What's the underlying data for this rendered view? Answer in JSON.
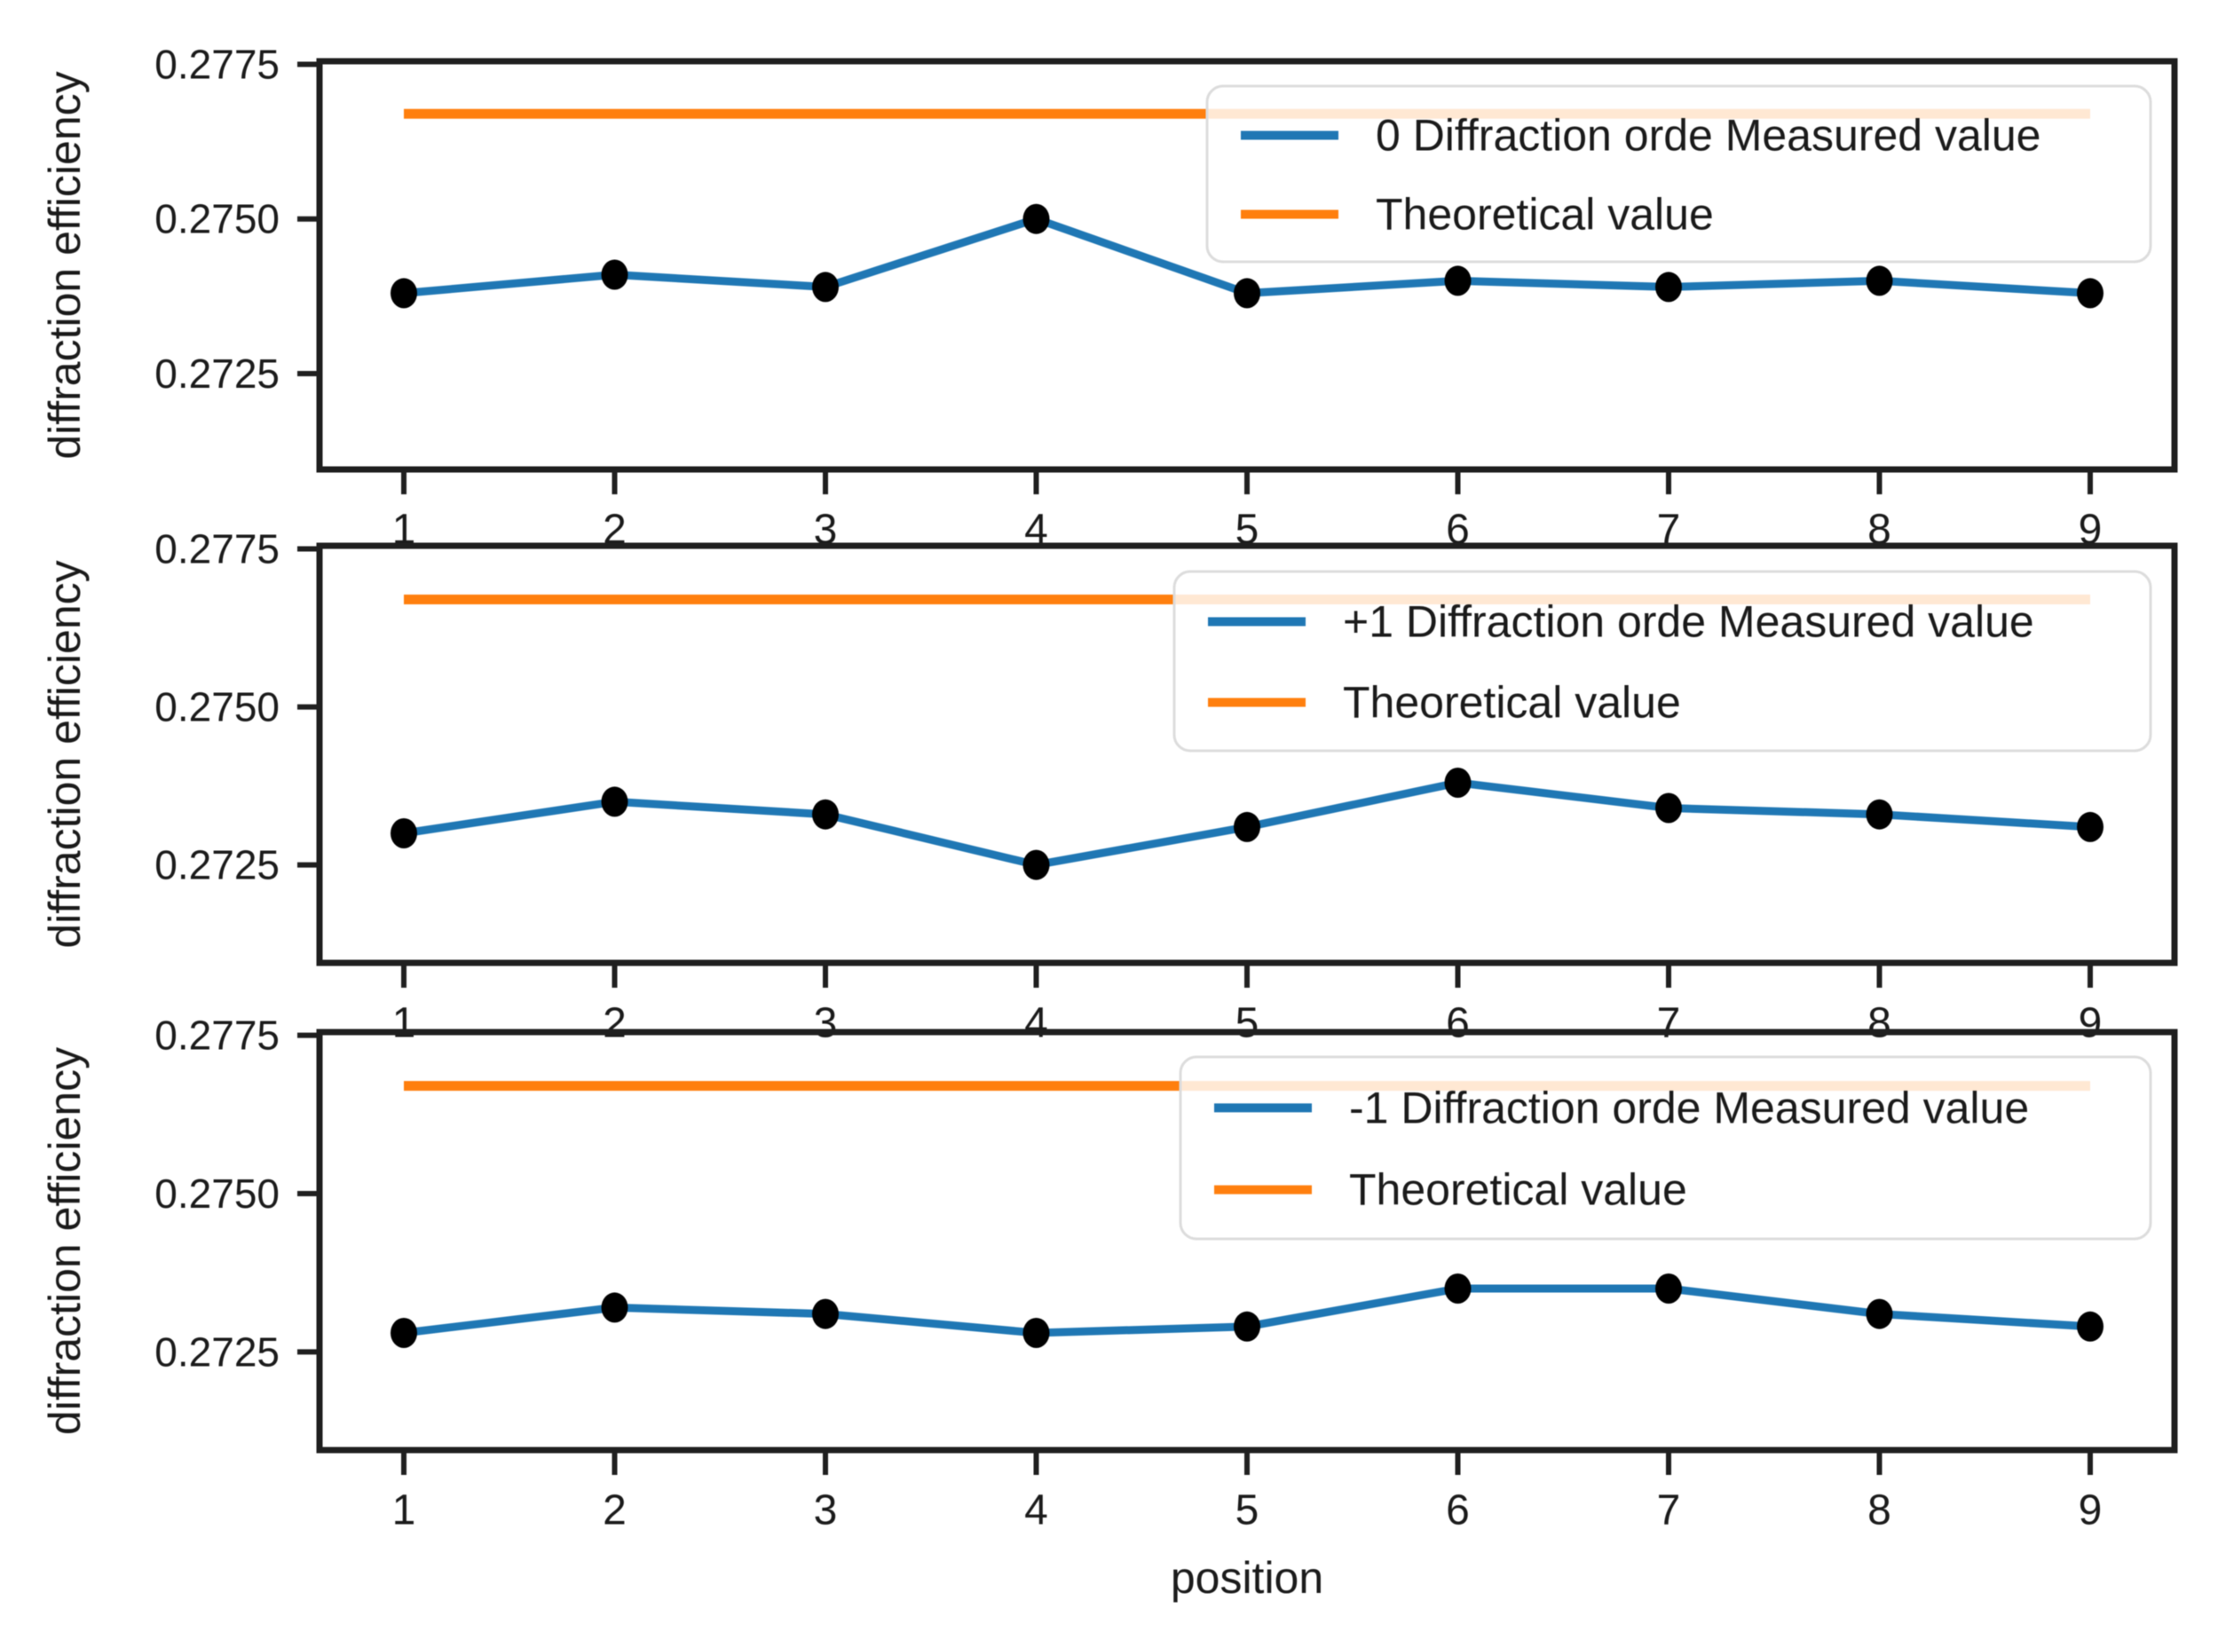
{
  "figure": {
    "xlabel": "position",
    "background": "#ffffff"
  },
  "palette": {
    "measured_line": "#1f77b4",
    "theoretical_line": "#ff7f0e",
    "marker": "#000000",
    "spine": "#1f1f1f",
    "text": "#1a1a1a",
    "legend_border": "#dcdcdc",
    "legend_fill": "rgba(255,255,255,0.82)"
  },
  "chart_data": [
    {
      "type": "line",
      "title": "",
      "ylabel": "diffraction efficiency",
      "x": [
        1,
        2,
        3,
        4,
        5,
        6,
        7,
        8,
        9
      ],
      "xtick_labels": [
        "1",
        "2",
        "3",
        "4",
        "5",
        "6",
        "7",
        "8",
        "9"
      ],
      "ytick_values": [
        0.2775,
        0.275,
        0.2725
      ],
      "ytick_labels": [
        "0.2775",
        "0.2750",
        "0.2725"
      ],
      "xlim": [
        0.6,
        9.4
      ],
      "ylim": [
        0.27095,
        0.27755
      ],
      "grid": false,
      "legend_position": "upper right",
      "series": [
        {
          "name": "0 Diffraction orde Measured value",
          "type": "line",
          "marker": "circle",
          "values": [
            0.2738,
            0.2741,
            0.2739,
            0.275,
            0.2738,
            0.274,
            0.2739,
            0.274,
            0.2738
          ]
        },
        {
          "name": "Theoretical value",
          "type": "hline",
          "value": 0.2767
        }
      ]
    },
    {
      "type": "line",
      "title": "",
      "ylabel": "diffraction efficiency",
      "x": [
        1,
        2,
        3,
        4,
        5,
        6,
        7,
        8,
        9
      ],
      "xtick_labels": [
        "1",
        "2",
        "3",
        "4",
        "5",
        "6",
        "7",
        "8",
        "9"
      ],
      "ytick_values": [
        0.2775,
        0.275,
        0.2725
      ],
      "ytick_labels": [
        "0.2775",
        "0.2750",
        "0.2725"
      ],
      "xlim": [
        0.6,
        9.4
      ],
      "ylim": [
        0.27095,
        0.27755
      ],
      "grid": false,
      "legend_position": "upper right",
      "series": [
        {
          "name": "+1 Diffraction orde Measured value",
          "type": "line",
          "marker": "circle",
          "values": [
            0.273,
            0.2735,
            0.2733,
            0.2725,
            0.2731,
            0.2738,
            0.2734,
            0.2733,
            0.2731
          ]
        },
        {
          "name": "Theoretical value",
          "type": "hline",
          "value": 0.2767
        }
      ]
    },
    {
      "type": "line",
      "title": "",
      "ylabel": "diffraction efficiency",
      "x": [
        1,
        2,
        3,
        4,
        5,
        6,
        7,
        8,
        9
      ],
      "xtick_labels": [
        "1",
        "2",
        "3",
        "4",
        "5",
        "6",
        "7",
        "8",
        "9"
      ],
      "ytick_values": [
        0.2775,
        0.275,
        0.2725
      ],
      "ytick_labels": [
        "0.2775",
        "0.2750",
        "0.2725"
      ],
      "xlim": [
        0.6,
        9.4
      ],
      "ylim": [
        0.27095,
        0.27755
      ],
      "grid": false,
      "legend_position": "upper right",
      "series": [
        {
          "name": "-1 Diffraction orde Measured value",
          "type": "line",
          "marker": "circle",
          "values": [
            0.2728,
            0.2732,
            0.2731,
            0.2728,
            0.2729,
            0.2735,
            0.2735,
            0.2731,
            0.2729
          ]
        },
        {
          "name": "Theoretical value",
          "type": "hline",
          "value": 0.2767
        }
      ]
    }
  ]
}
